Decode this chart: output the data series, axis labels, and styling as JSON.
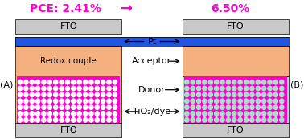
{
  "bg_color": "#ffffff",
  "title_pce_left": "PCE: 2.41%",
  "title_arrow": "→",
  "title_pce_right": "6.50%",
  "title_color": "#ff00cc",
  "title_fontsize": 10,
  "fto_color": "#c8c8c8",
  "blue_layer_color": "#2255dd",
  "orange_color": "#f5b080",
  "pink_color": "#ff00cc",
  "cyan_bg_color": "#aaddcc",
  "label_A": "(A)",
  "label_B": "(B)",
  "label_FTO": "FTO",
  "label_Pt": "Pt",
  "label_Acceptor": "Acceptor",
  "label_Donor": "Donor",
  "label_TiO2": "TiO₂/dye",
  "label_Redox": "Redox couple",
  "fig_w": 3.78,
  "fig_h": 1.73,
  "dpi": 100
}
